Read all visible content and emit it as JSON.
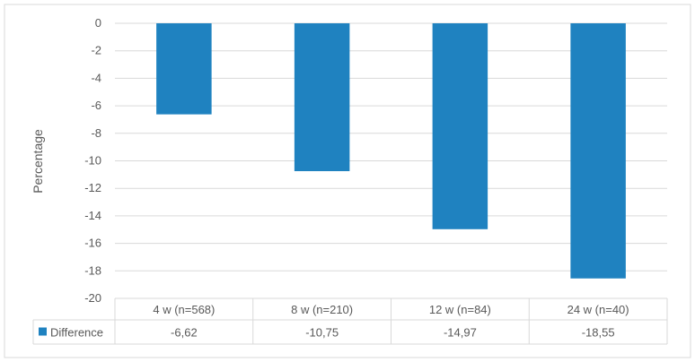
{
  "chart_data": {
    "type": "bar",
    "title": "",
    "xlabel": "",
    "ylabel": "Percentage",
    "ylim": [
      -20,
      0
    ],
    "y_ticks": [
      0,
      -2,
      -4,
      -6,
      -8,
      -10,
      -12,
      -14,
      -16,
      -18,
      -20
    ],
    "grid": true,
    "legend_placement": "data-table-left",
    "categories": [
      "4 w (n=568)",
      "8 w (n=210)",
      "12 w (n=84)",
      "24 w (n=40)"
    ],
    "series": [
      {
        "name": "Difference",
        "values": [
          -6.62,
          -10.75,
          -14.97,
          -18.55
        ],
        "value_labels": [
          "-6,62",
          "-10,75",
          "-14,97",
          "-18,55"
        ],
        "color": "#1f82c0"
      }
    ]
  }
}
